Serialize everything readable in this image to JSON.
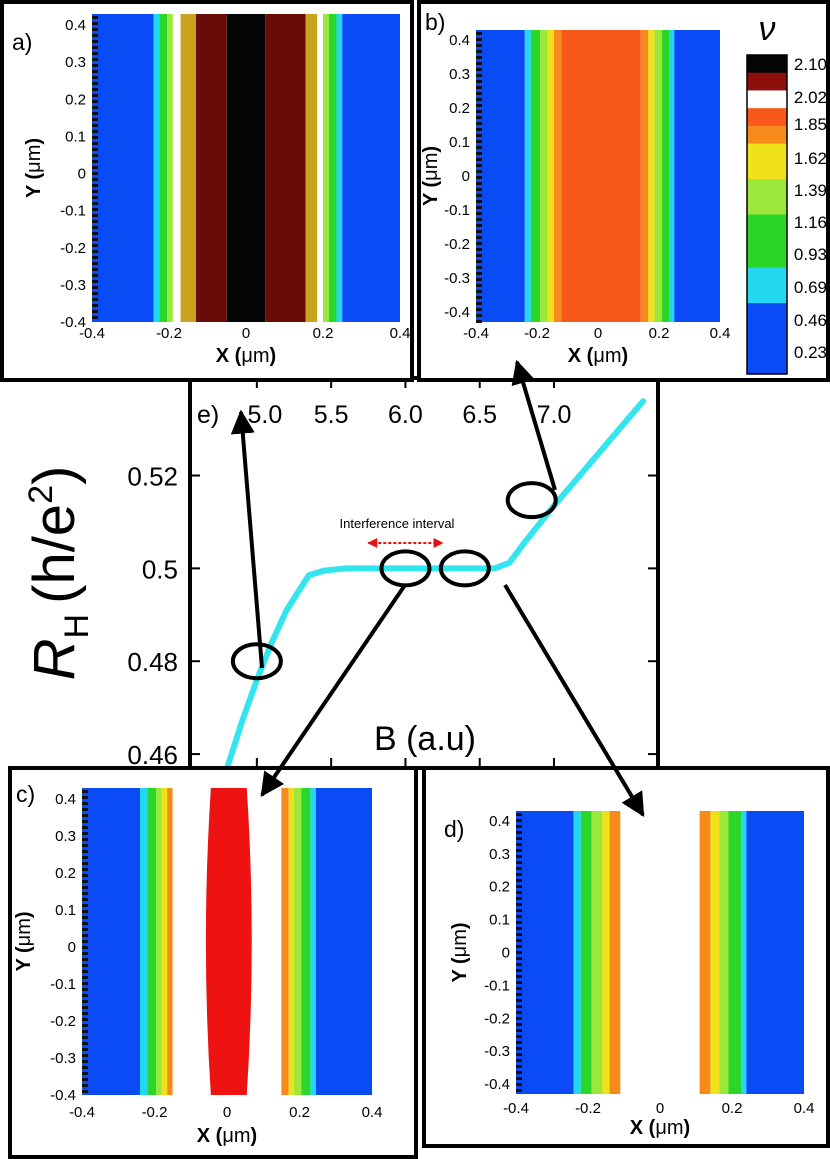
{
  "colors": {
    "blue": "#0b4bf5",
    "cyan": "#22d8f0",
    "green": "#2bd62b",
    "light_green": "#9be83a",
    "yellow": "#f0e21a",
    "orange": "#f88a1c",
    "orange_red": "#f8581c",
    "red": "#ee1212",
    "dark_red": "#8c0f0c",
    "brown": "#6b0b08",
    "gold": "#c9a21e",
    "black": "#050505",
    "white": "#ffffff",
    "curve": "#33e5ee",
    "arrow_red": "#e41111"
  },
  "chart_data": [
    {
      "panel": "e",
      "type": "line",
      "label": "e)",
      "xlabel": "B (a.u)",
      "ylabel_main": "R",
      "ylabel_sub": "H",
      "ylabel_rest_1": "(h/e",
      "ylabel_sup": "2",
      "ylabel_rest_2": ")",
      "xlim": [
        4.55,
        7.7
      ],
      "ylim": [
        0.457,
        0.541
      ],
      "x_ticks": [
        5.0,
        5.5,
        6.0,
        6.5,
        7.0
      ],
      "x_tick_labels": [
        "5.0",
        "5.5",
        "6.0",
        "6.5",
        "7.0"
      ],
      "y_ticks": [
        0.46,
        0.48,
        0.5,
        0.52
      ],
      "y_tick_labels": [
        "0.46",
        "0.48",
        "0.5",
        "0.52"
      ],
      "series": [
        {
          "name": "R_H",
          "x": [
            4.8,
            4.9,
            5.0,
            5.1,
            5.2,
            5.3,
            5.35,
            5.45,
            5.6,
            5.8,
            6.0,
            6.2,
            6.4,
            6.6,
            6.7,
            6.8,
            7.0,
            7.2,
            7.4,
            7.6
          ],
          "y": [
            0.457,
            0.467,
            0.476,
            0.484,
            0.491,
            0.496,
            0.4985,
            0.4995,
            0.5,
            0.5,
            0.5,
            0.5,
            0.5,
            0.5,
            0.5012,
            0.5055,
            0.5135,
            0.521,
            0.5285,
            0.536
          ]
        }
      ],
      "annotation": "Interference interval",
      "annotation_range": [
        5.75,
        6.25
      ],
      "markers": [
        {
          "x": 5.0,
          "y": 0.48
        },
        {
          "x": 6.0,
          "y": 0.5
        },
        {
          "x": 6.4,
          "y": 0.5
        },
        {
          "x": 6.85,
          "y": 0.5147
        }
      ]
    },
    {
      "panel": "a",
      "type": "heatmap",
      "label": "a)",
      "xlabel_prefix": "X (",
      "xlabel_unit": "μm",
      "xlabel_suffix": ")",
      "ylabel_prefix": "Y (",
      "ylabel_unit": "μm",
      "ylabel_suffix": ")",
      "xlim": [
        -0.4,
        0.4
      ],
      "ylim": [
        -0.4,
        0.43
      ],
      "x_tick_labels": [
        "-0.4",
        "-0.2",
        "0",
        "0.2",
        "0.4"
      ],
      "y_tick_labels": [
        "0.4",
        "0.3",
        "0.2",
        "0.1",
        "0",
        "-0.1",
        "-0.2",
        "-0.3",
        "-0.4"
      ],
      "stripes": [
        {
          "from": -0.4,
          "to": -0.24,
          "color": "blue"
        },
        {
          "from": -0.24,
          "to": -0.225,
          "color": "cyan"
        },
        {
          "from": -0.225,
          "to": -0.205,
          "color": "green"
        },
        {
          "from": -0.205,
          "to": -0.19,
          "color": "light_green"
        },
        {
          "from": -0.19,
          "to": -0.17,
          "color": "white"
        },
        {
          "from": -0.17,
          "to": -0.13,
          "color": "gold"
        },
        {
          "from": -0.13,
          "to": -0.05,
          "color": "brown"
        },
        {
          "from": -0.05,
          "to": 0.05,
          "color": "black"
        },
        {
          "from": 0.05,
          "to": 0.155,
          "color": "brown"
        },
        {
          "from": 0.155,
          "to": 0.185,
          "color": "gold"
        },
        {
          "from": 0.185,
          "to": 0.2,
          "color": "white"
        },
        {
          "from": 0.2,
          "to": 0.215,
          "color": "light_green"
        },
        {
          "from": 0.215,
          "to": 0.235,
          "color": "green"
        },
        {
          "from": 0.235,
          "to": 0.25,
          "color": "cyan"
        },
        {
          "from": 0.25,
          "to": 0.4,
          "color": "blue"
        }
      ]
    },
    {
      "panel": "b",
      "type": "heatmap",
      "label": "b)",
      "xlabel_prefix": "X (",
      "xlabel_unit": "μm",
      "xlabel_suffix": ")",
      "ylabel_prefix": "Y (",
      "ylabel_unit": "μm",
      "ylabel_suffix": ")",
      "xlim": [
        -0.4,
        0.4
      ],
      "ylim": [
        -0.43,
        0.43
      ],
      "x_tick_labels": [
        "-0.4",
        "-0.2",
        "0",
        "0.2",
        "0.4"
      ],
      "y_tick_labels": [
        "0.4",
        "0.3",
        "0.2",
        "0.1",
        "0",
        "-0.1",
        "-0.2",
        "-0.3",
        "-0.4"
      ],
      "stripes": [
        {
          "from": -0.4,
          "to": -0.24,
          "color": "blue"
        },
        {
          "from": -0.24,
          "to": -0.22,
          "color": "cyan"
        },
        {
          "from": -0.22,
          "to": -0.19,
          "color": "green"
        },
        {
          "from": -0.19,
          "to": -0.165,
          "color": "light_green"
        },
        {
          "from": -0.165,
          "to": -0.145,
          "color": "yellow"
        },
        {
          "from": -0.145,
          "to": -0.12,
          "color": "orange"
        },
        {
          "from": -0.12,
          "to": 0.14,
          "color": "orange_red"
        },
        {
          "from": 0.14,
          "to": 0.165,
          "color": "orange"
        },
        {
          "from": 0.165,
          "to": 0.185,
          "color": "yellow"
        },
        {
          "from": 0.185,
          "to": 0.21,
          "color": "light_green"
        },
        {
          "from": 0.21,
          "to": 0.235,
          "color": "green"
        },
        {
          "from": 0.235,
          "to": 0.25,
          "color": "cyan"
        },
        {
          "from": 0.25,
          "to": 0.4,
          "color": "blue"
        }
      ]
    },
    {
      "panel": "c",
      "type": "heatmap",
      "label": "c)",
      "xlabel_prefix": "X (",
      "xlabel_unit": "μm",
      "xlabel_suffix": ")",
      "ylabel_prefix": "Y (",
      "ylabel_unit": "μm",
      "ylabel_suffix": ")",
      "xlim": [
        -0.4,
        0.4
      ],
      "ylim": [
        -0.4,
        0.43
      ],
      "x_tick_labels": [
        "-0.4",
        "-0.2",
        "0",
        "0.2",
        "0.4"
      ],
      "y_tick_labels": [
        "0.4",
        "0.3",
        "0.2",
        "0.1",
        "0",
        "-0.1",
        "-0.2",
        "-0.3",
        "-0.4"
      ],
      "stripes": [
        {
          "from": -0.4,
          "to": -0.24,
          "color": "blue"
        },
        {
          "from": -0.24,
          "to": -0.22,
          "color": "cyan"
        },
        {
          "from": -0.22,
          "to": -0.195,
          "color": "green"
        },
        {
          "from": -0.195,
          "to": -0.18,
          "color": "light_green"
        },
        {
          "from": -0.18,
          "to": -0.165,
          "color": "yellow"
        },
        {
          "from": -0.165,
          "to": -0.15,
          "color": "orange"
        },
        {
          "from": -0.15,
          "to": 0.15,
          "color": "white"
        },
        {
          "from": 0.15,
          "to": 0.17,
          "color": "orange"
        },
        {
          "from": 0.17,
          "to": 0.185,
          "color": "yellow"
        },
        {
          "from": 0.185,
          "to": 0.205,
          "color": "light_green"
        },
        {
          "from": 0.205,
          "to": 0.23,
          "color": "green"
        },
        {
          "from": 0.23,
          "to": 0.245,
          "color": "cyan"
        },
        {
          "from": 0.245,
          "to": 0.4,
          "color": "blue"
        }
      ],
      "center_island": {
        "from": -0.05,
        "to": 0.06,
        "color": "red"
      }
    },
    {
      "panel": "d",
      "type": "heatmap",
      "label": "d)",
      "xlabel_prefix": "X (",
      "xlabel_unit": "μm",
      "xlabel_suffix": ")",
      "ylabel_prefix": "Y (",
      "ylabel_unit": "μm",
      "ylabel_suffix": ")",
      "xlim": [
        -0.4,
        0.4
      ],
      "ylim": [
        -0.43,
        0.43
      ],
      "x_tick_labels": [
        "-0.4",
        "-0.2",
        "0",
        "0.2",
        "0.4"
      ],
      "y_tick_labels": [
        "0.4",
        "0.3",
        "0.2",
        "0.1",
        "0",
        "-0.1",
        "-0.2",
        "-0.3",
        "-0.4"
      ],
      "stripes": [
        {
          "from": -0.4,
          "to": -0.24,
          "color": "blue"
        },
        {
          "from": -0.24,
          "to": -0.22,
          "color": "cyan"
        },
        {
          "from": -0.22,
          "to": -0.19,
          "color": "green"
        },
        {
          "from": -0.19,
          "to": -0.16,
          "color": "light_green"
        },
        {
          "from": -0.16,
          "to": -0.14,
          "color": "yellow"
        },
        {
          "from": -0.14,
          "to": -0.11,
          "color": "orange"
        },
        {
          "from": -0.11,
          "to": 0.11,
          "color": "white"
        },
        {
          "from": 0.11,
          "to": 0.14,
          "color": "orange"
        },
        {
          "from": 0.14,
          "to": 0.165,
          "color": "yellow"
        },
        {
          "from": 0.165,
          "to": 0.19,
          "color": "light_green"
        },
        {
          "from": 0.19,
          "to": 0.225,
          "color": "green"
        },
        {
          "from": 0.225,
          "to": 0.24,
          "color": "cyan"
        },
        {
          "from": 0.24,
          "to": 0.4,
          "color": "blue"
        }
      ]
    },
    {
      "panel": "colorbar",
      "type": "colorbar",
      "title": "ν",
      "tick_labels": [
        "2.10",
        "2.02",
        "1.85",
        "1.62",
        "1.39",
        "1.16",
        "0.93",
        "0.69",
        "0.46",
        "0.23"
      ],
      "levels": [
        "black",
        "dark_red",
        "white",
        "orange_red",
        "orange",
        "yellow",
        "yellow",
        "light_green",
        "light_green",
        "green",
        "green",
        "green",
        "cyan",
        "cyan",
        "blue",
        "blue",
        "blue",
        "blue"
      ]
    }
  ]
}
